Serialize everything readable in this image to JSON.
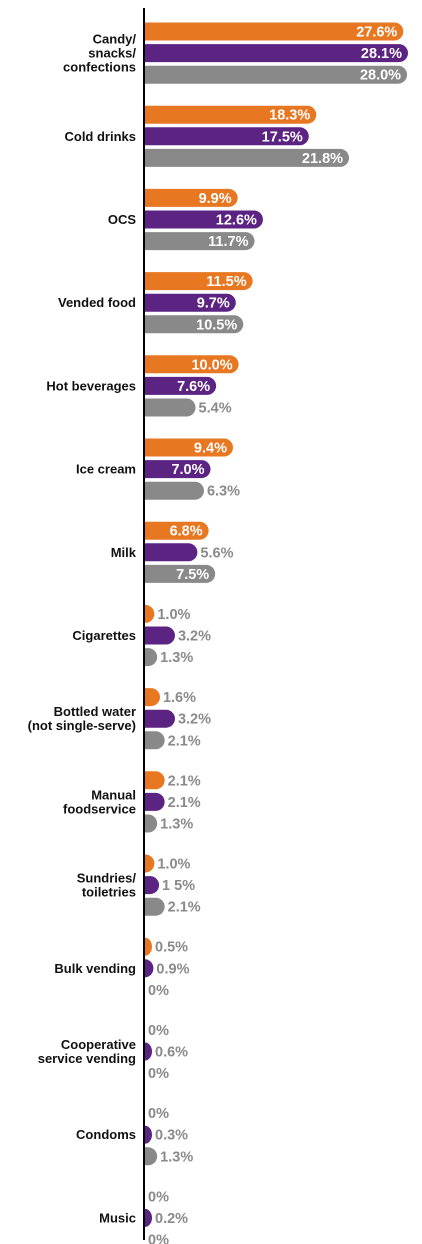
{
  "chart_data": {
    "type": "bar",
    "orientation": "horizontal",
    "categories": [
      "Candy/\nsnacks/\nconfections",
      "Cold drinks",
      "OCS",
      "Vended food",
      "Hot beverages",
      "Ice cream",
      "Milk",
      "Cigarettes",
      "Bottled water\n(not single-serve)",
      "Manual\nfoodservice",
      "Sundries/\ntoiletries",
      "Bulk vending",
      "Cooperative\nservice vending",
      "Condoms",
      "Music"
    ],
    "series": [
      {
        "color": "#E87722",
        "values": [
          27.6,
          18.3,
          9.9,
          11.5,
          10.0,
          9.4,
          6.8,
          1.0,
          1.6,
          2.1,
          1.0,
          0.5,
          0,
          0,
          0
        ],
        "labels": [
          "27.6%",
          "18.3%",
          "9.9%",
          "11.5%",
          "10.0%",
          "9.4%",
          "6.8%",
          "1.0%",
          "1.6%",
          "2.1%",
          "1.0%",
          "0.5%",
          "0%",
          "0%",
          "0%"
        ]
      },
      {
        "color": "#5B2382",
        "values": [
          28.1,
          17.5,
          12.6,
          9.7,
          7.6,
          7.0,
          5.6,
          3.2,
          3.2,
          2.1,
          1.5,
          0.9,
          0.6,
          0.3,
          0.2
        ],
        "labels": [
          "28.1%",
          "17.5%",
          "12.6%",
          "9.7%",
          "7.6%",
          "7.0%",
          "5.6%",
          "3.2%",
          "3.2%",
          "2.1%",
          "1 5%",
          "0.9%",
          "0.6%",
          "0.3%",
          "0.2%"
        ]
      },
      {
        "color": "#898989",
        "values": [
          28.0,
          21.8,
          11.7,
          10.5,
          5.4,
          6.3,
          7.5,
          1.3,
          2.1,
          1.3,
          2.1,
          0,
          0,
          1.3,
          0
        ],
        "labels": [
          "28.0%",
          "21.8%",
          "11.7%",
          "10.5%",
          "5.4%",
          "6.3%",
          "7.5%",
          "1.3%",
          "2.1%",
          "1.3%",
          "2.1%",
          "0%",
          "0%",
          "1.3%",
          "0%"
        ]
      }
    ],
    "xlim": [
      0,
      28.1
    ],
    "grid": false,
    "legend": "none"
  }
}
